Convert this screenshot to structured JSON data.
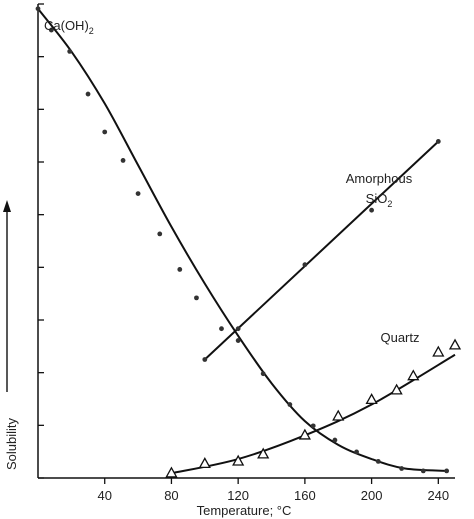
{
  "chart_data": {
    "type": "scatter",
    "xlabel": "Temperature; °C",
    "ylabel": "Solubility",
    "xlim": [
      0,
      250
    ],
    "ylim": [
      0,
      100
    ],
    "x_ticks": [
      40,
      80,
      120,
      160,
      200,
      240
    ],
    "grid": false,
    "legend": "none",
    "series": [
      {
        "name": "Ca(OH)2",
        "name_display": {
          "base": "Ca(OH)",
          "sub": "2"
        },
        "marker": "dot",
        "color": "#333333",
        "points": [
          [
            0,
            99
          ],
          [
            8,
            94.5
          ],
          [
            19,
            90
          ],
          [
            30,
            81
          ],
          [
            40,
            73
          ],
          [
            51,
            67
          ],
          [
            60,
            60
          ],
          [
            73,
            51.5
          ],
          [
            85,
            44
          ],
          [
            95,
            38
          ],
          [
            110,
            31.5
          ],
          [
            120,
            29
          ],
          [
            135,
            22
          ],
          [
            151,
            15.5
          ],
          [
            165,
            11
          ],
          [
            178,
            8
          ],
          [
            191,
            5.5
          ],
          [
            204,
            3.5
          ],
          [
            218,
            2
          ],
          [
            231,
            1.5
          ],
          [
            245,
            1.5
          ]
        ],
        "curve": [
          [
            0,
            99
          ],
          [
            20,
            90
          ],
          [
            40,
            79
          ],
          [
            60,
            66
          ],
          [
            80,
            53
          ],
          [
            100,
            41
          ],
          [
            120,
            30
          ],
          [
            140,
            20
          ],
          [
            160,
            12
          ],
          [
            180,
            7
          ],
          [
            200,
            4
          ],
          [
            220,
            2
          ],
          [
            245,
            1.5
          ]
        ]
      },
      {
        "name": "Amorphous SiO2",
        "name_display": {
          "line1": "Amorphous",
          "base": "SiO",
          "sub": "2"
        },
        "marker": "dot",
        "color": "#333333",
        "points": [
          [
            100,
            25
          ],
          [
            120,
            31.5
          ],
          [
            160,
            45
          ],
          [
            200,
            56.5
          ],
          [
            240,
            71
          ]
        ],
        "curve": [
          [
            100,
            25
          ],
          [
            240,
            71
          ]
        ]
      },
      {
        "name": "Quartz",
        "name_display": {
          "base": "Quartz",
          "sub": ""
        },
        "marker": "triangle",
        "color": "#333333",
        "points": [
          [
            80,
            1
          ],
          [
            100,
            3
          ],
          [
            120,
            3.5
          ],
          [
            135,
            5
          ],
          [
            160,
            9
          ],
          [
            180,
            13
          ],
          [
            200,
            16.5
          ],
          [
            215,
            18.5
          ],
          [
            225,
            21.5
          ],
          [
            240,
            26.5
          ],
          [
            250,
            28
          ]
        ],
        "curve": [
          [
            80,
            1
          ],
          [
            120,
            4
          ],
          [
            160,
            9
          ],
          [
            200,
            15.5
          ],
          [
            250,
            26
          ]
        ]
      }
    ]
  }
}
